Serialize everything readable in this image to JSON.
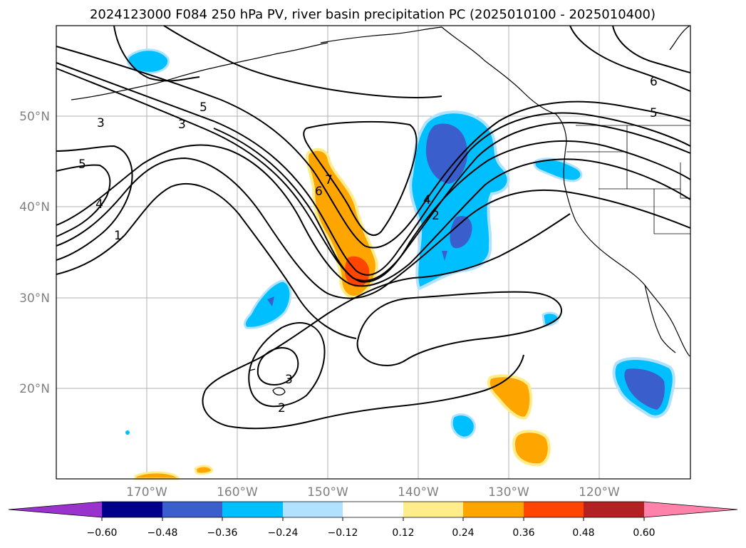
{
  "title": "2024123000 F084 250 hPa PV, river basin precipitation PC (2025010100 - 2025010400)",
  "lat_labels": [
    "50°N",
    "40°N",
    "30°N",
    "20°N"
  ],
  "lon_labels": [
    "170°W",
    "160°W",
    "150°W",
    "140°W",
    "130°W",
    "120°W"
  ],
  "pv_contour_labels": [
    "5",
    "3",
    "3",
    "5",
    "4",
    "1",
    "7",
    "6",
    "4",
    "2",
    "3",
    "2",
    "6",
    "5"
  ],
  "colorbar": {
    "ticks": [
      "−0.60",
      "−0.48",
      "−0.36",
      "−0.24",
      "−0.12",
      "0.12",
      "0.24",
      "0.36",
      "0.48",
      "0.60"
    ],
    "colors": [
      "#9a32cd",
      "#00008b",
      "#3a5fcd",
      "#00bfff",
      "#b0e2ff",
      "#ffffff",
      "#ffec8b",
      "#ffa500",
      "#ff4500",
      "#b22222",
      "#ff82ab"
    ]
  }
}
